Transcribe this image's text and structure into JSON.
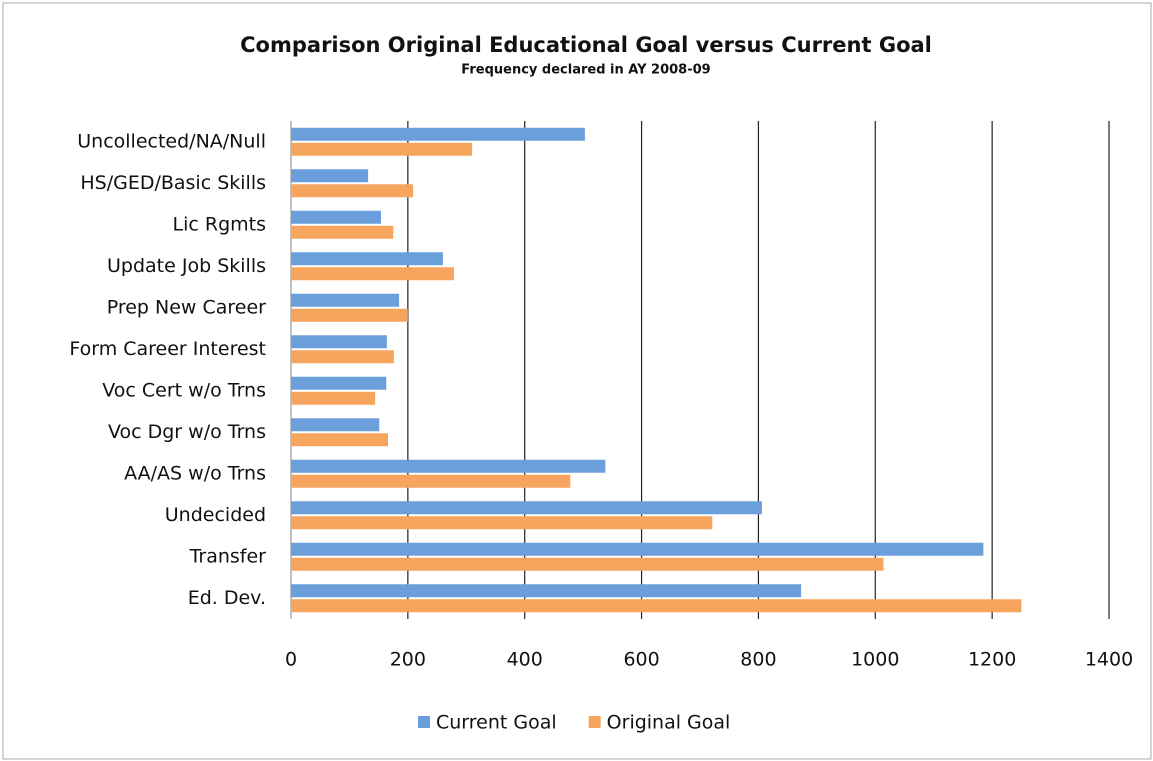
{
  "chart_data": {
    "type": "hbar",
    "title": "Comparison Original Educational Goal versus Current Goal",
    "subtitle": "Frequency declared in AY 2008-09",
    "categories": [
      "Uncollected/NA/Null",
      "HS/GED/Basic Skills",
      "Lic Rgmts",
      "Update Job Skills",
      "Prep New Career",
      "Form Career Interest",
      "Voc Cert w/o Trns",
      "Voc Dgr w/o Trns",
      "AA/AS w/o Trns",
      "Undecided",
      "Transfer",
      "Ed. Dev."
    ],
    "series": [
      {
        "name": "Current Goal",
        "color": "#6b9fdc",
        "values": [
          503,
          132,
          154,
          260,
          185,
          164,
          163,
          151,
          538,
          806,
          1185,
          873
        ]
      },
      {
        "name": "Original Goal",
        "color": "#f7a45e",
        "values": [
          310,
          209,
          175,
          279,
          200,
          176,
          144,
          166,
          478,
          721,
          1014,
          1250
        ]
      }
    ],
    "xlim": [
      0,
      1400
    ],
    "xticks": [
      0,
      200,
      400,
      600,
      800,
      1000,
      1200,
      1400
    ],
    "grid": true,
    "legend": "bottom"
  }
}
